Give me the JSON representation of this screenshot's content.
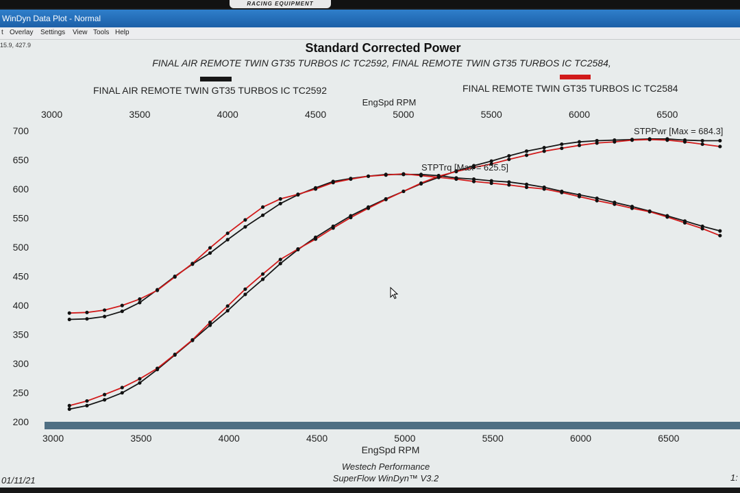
{
  "window": {
    "title": "WinDyn Data Plot - Normal",
    "brand_logo": "RACING EQUIPMENT"
  },
  "menu": [
    "t",
    "Overlay",
    "Settings",
    "View",
    "Tools",
    "Help"
  ],
  "coord_readout": "15.9, 427.9",
  "footer": {
    "date": "01/11/21",
    "right_fragment": "1:"
  },
  "colors": {
    "black_series": "#161616",
    "red_series": "#d11a1a",
    "bar": "#4f6f83",
    "background": "#e8ecec"
  },
  "chart_data": {
    "type": "line",
    "title": "Standard Corrected Power",
    "subtitle": "FINAL AIR REMOTE TWIN GT35 TURBOS IC TC2592, FINAL REMOTE TWIN GT35 TURBOS IC TC2584,",
    "legend": [
      {
        "label": "FINAL AIR REMOTE TWIN GT35 TURBOS IC TC2592",
        "color": "#161616"
      },
      {
        "label": "FINAL REMOTE TWIN GT35 TURBOS IC TC2584",
        "color": "#d11a1a"
      }
    ],
    "xlabel_top": "EngSpd RPM",
    "xlabel": "EngSpd RPM",
    "x_ticks": [
      "3000",
      "3500",
      "4000",
      "4500",
      "5000",
      "5500",
      "6000",
      "6500"
    ],
    "y_ticks": [
      "700",
      "650",
      "600",
      "550",
      "500",
      "450",
      "400",
      "350",
      "300",
      "250",
      "200"
    ],
    "xlim": [
      2950,
      6850
    ],
    "ylim": [
      200,
      700
    ],
    "grid": false,
    "annotations": [
      {
        "text": "STPPwr [Max = 684.3]",
        "x": 6310,
        "y": 701
      },
      {
        "text": "STPTrq [Max = 625.5]",
        "x": 5100,
        "y": 636
      }
    ],
    "footer_text": [
      "Westech Performance",
      "SuperFlow WinDyn™  V3.2"
    ],
    "series": [
      {
        "name": "FINAL AIR REMOTE TWIN GT35 TURBOS IC TC2592",
        "measure": "STPTrq",
        "x": [
          3100,
          3200,
          3300,
          3400,
          3500,
          3600,
          3700,
          3800,
          3900,
          4000,
          4100,
          4200,
          4300,
          4400,
          4500,
          4600,
          4700,
          4800,
          4900,
          5000,
          5100,
          5200,
          5300,
          5400,
          5500,
          5600,
          5700,
          5800,
          5900,
          6000,
          6100,
          6200,
          6300,
          6400,
          6500,
          6600,
          6700,
          6800
        ],
        "y": [
          376,
          377,
          381,
          390,
          405,
          427,
          450,
          471,
          490,
          513,
          535,
          555,
          575,
          590,
          602,
          613,
          618,
          622,
          625,
          625,
          625,
          623,
          619,
          617,
          614,
          612,
          608,
          603,
          596,
          590,
          584,
          577,
          570,
          562,
          554,
          545,
          536,
          528
        ]
      },
      {
        "name": "FINAL REMOTE TWIN GT35 TURBOS IC TC2584",
        "measure": "STPTrq",
        "x": [
          3100,
          3200,
          3300,
          3400,
          3500,
          3600,
          3700,
          3800,
          3900,
          4000,
          4100,
          4200,
          4300,
          4400,
          4500,
          4600,
          4700,
          4800,
          4900,
          5000,
          5100,
          5200,
          5300,
          5400,
          5500,
          5600,
          5700,
          5800,
          5900,
          6000,
          6100,
          6200,
          6300,
          6400,
          6500,
          6600,
          6700,
          6800
        ],
        "y": [
          387,
          388,
          392,
          400,
          411,
          426,
          449,
          472,
          499,
          524,
          547,
          569,
          583,
          591,
          600,
          611,
          617,
          622,
          624,
          626,
          623,
          620,
          617,
          613,
          610,
          607,
          603,
          600,
          594,
          587,
          580,
          574,
          567,
          561,
          552,
          542,
          532,
          520
        ]
      },
      {
        "name": "FINAL AIR REMOTE TWIN GT35 TURBOS IC TC2592",
        "measure": "STPPwr",
        "x": [
          3100,
          3200,
          3300,
          3400,
          3500,
          3600,
          3700,
          3800,
          3900,
          4000,
          4100,
          4200,
          4300,
          4400,
          4500,
          4600,
          4700,
          4800,
          4900,
          5000,
          5100,
          5200,
          5300,
          5400,
          5500,
          5600,
          5700,
          5800,
          5900,
          6000,
          6100,
          6200,
          6300,
          6400,
          6500,
          6600,
          6700,
          6800
        ],
        "y": [
          222,
          228,
          238,
          250,
          267,
          290,
          315,
          340,
          366,
          391,
          419,
          445,
          472,
          496,
          517,
          536,
          554,
          569,
          583,
          596,
          609,
          620,
          631,
          640,
          648,
          657,
          665,
          671,
          677,
          681,
          683,
          684,
          685,
          686,
          686,
          684,
          683,
          683
        ]
      },
      {
        "name": "FINAL REMOTE TWIN GT35 TURBOS IC TC2584",
        "measure": "STPPwr",
        "x": [
          3100,
          3200,
          3300,
          3400,
          3500,
          3600,
          3700,
          3800,
          3900,
          4000,
          4100,
          4200,
          4300,
          4400,
          4500,
          4600,
          4700,
          4800,
          4900,
          5000,
          5100,
          5200,
          5300,
          5400,
          5500,
          5600,
          5700,
          5800,
          5900,
          6000,
          6100,
          6200,
          6300,
          6400,
          6500,
          6600,
          6700,
          6800
        ],
        "y": [
          228,
          236,
          247,
          259,
          274,
          292,
          316,
          341,
          371,
          399,
          428,
          454,
          479,
          497,
          514,
          533,
          551,
          567,
          582,
          596,
          610,
          622,
          630,
          637,
          643,
          651,
          658,
          665,
          670,
          675,
          679,
          681,
          684,
          685,
          684,
          681,
          677,
          673
        ]
      }
    ]
  }
}
